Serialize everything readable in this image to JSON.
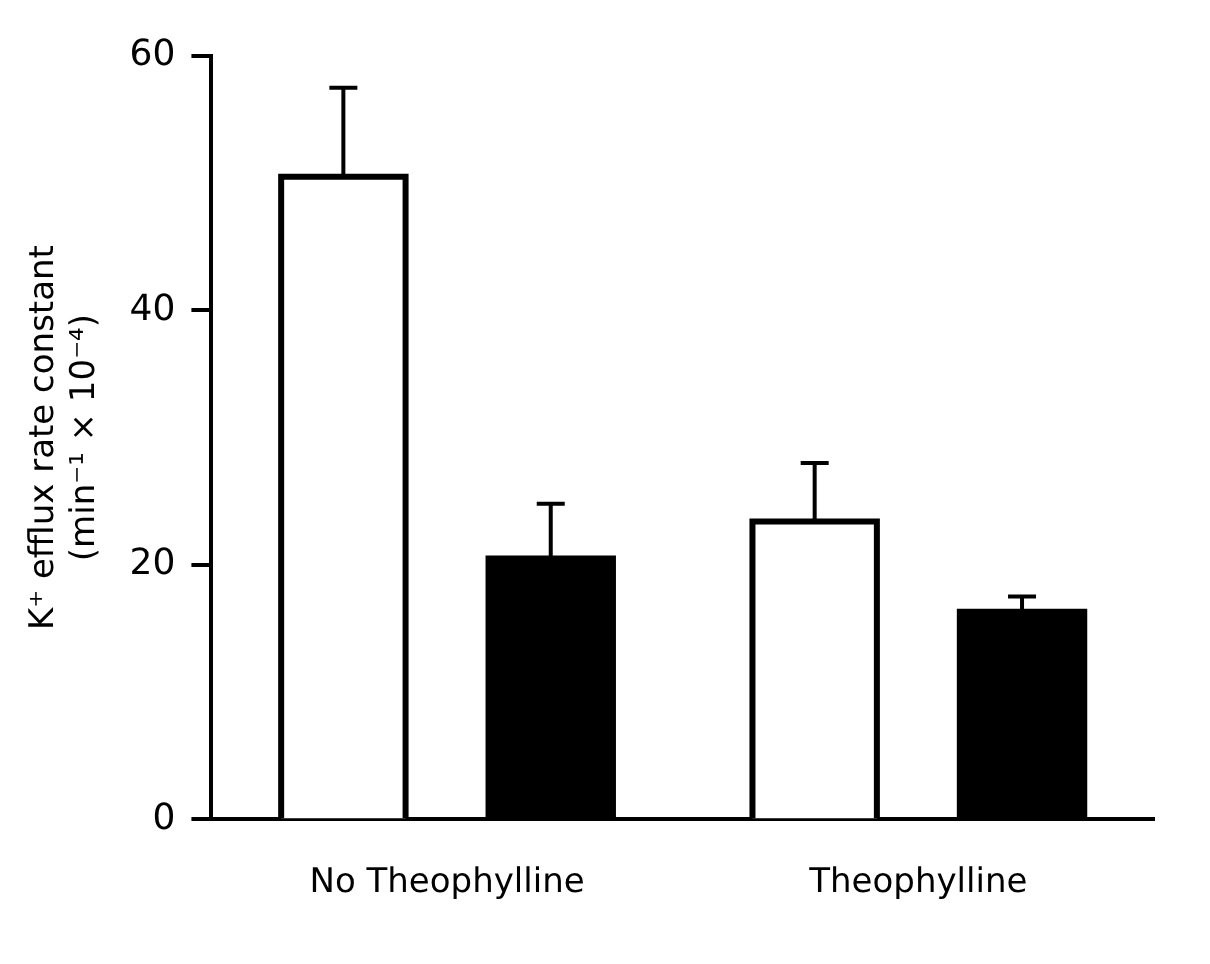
{
  "chart_data": {
    "type": "bar",
    "ylabel": "K⁺ efflux rate constant\n(min⁻¹ × 10⁻⁴)",
    "categories": [
      "No Theophylline",
      "Theophylline"
    ],
    "series": [
      {
        "color": "#ffffff",
        "values": [
          50.5,
          23.4
        ],
        "errors": [
          [
            50.5,
            57.5
          ],
          [
            23.4,
            28
          ]
        ]
      },
      {
        "color": "#000000",
        "values": [
          20.5,
          16.3
        ],
        "errors": [
          [
            20.5,
            24.8
          ],
          [
            16.3,
            17.5
          ]
        ]
      }
    ],
    "ylim": [
      0,
      60
    ],
    "yticks": [
      0,
      20,
      40,
      60
    ],
    "grid": false,
    "legend": false
  }
}
